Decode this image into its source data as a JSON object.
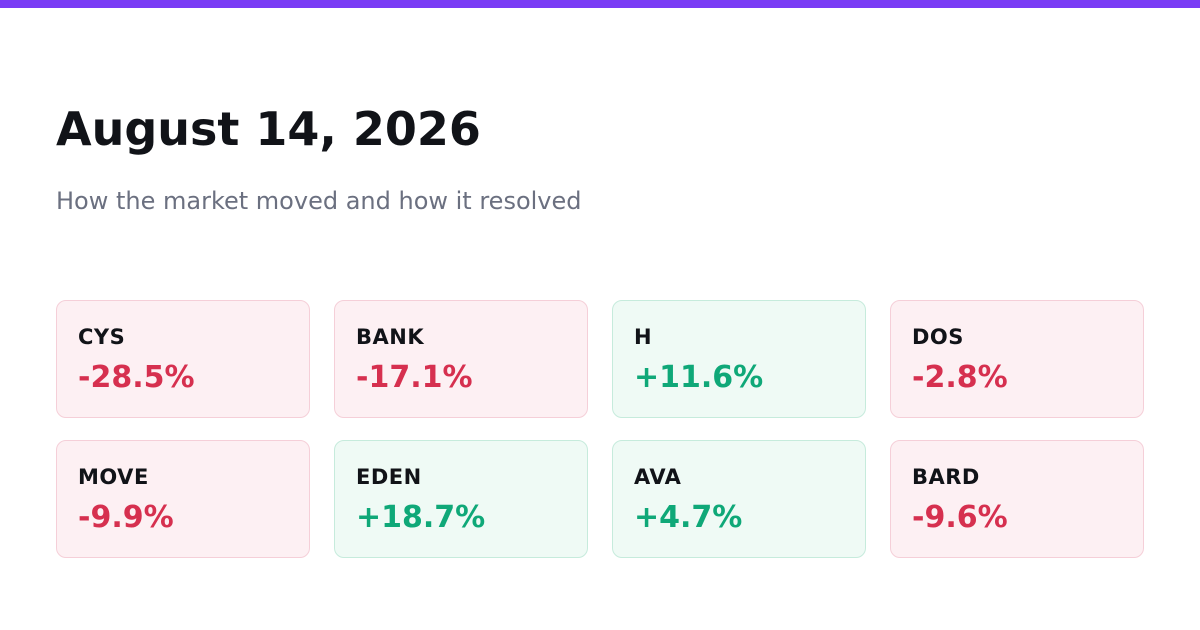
{
  "header": {
    "title": "August 14, 2026",
    "subtitle": "How the market moved and how it resolved"
  },
  "cards": [
    {
      "ticker": "CYS",
      "change": "-28.5%"
    },
    {
      "ticker": "BANK",
      "change": "-17.1%"
    },
    {
      "ticker": "H",
      "change": "+11.6%"
    },
    {
      "ticker": "DOS",
      "change": "-2.8%"
    },
    {
      "ticker": "MOVE",
      "change": "-9.9%"
    },
    {
      "ticker": "EDEN",
      "change": "+18.7%"
    },
    {
      "ticker": "AVA",
      "change": "+4.7%"
    },
    {
      "ticker": "BARD",
      "change": "-9.6%"
    }
  ]
}
